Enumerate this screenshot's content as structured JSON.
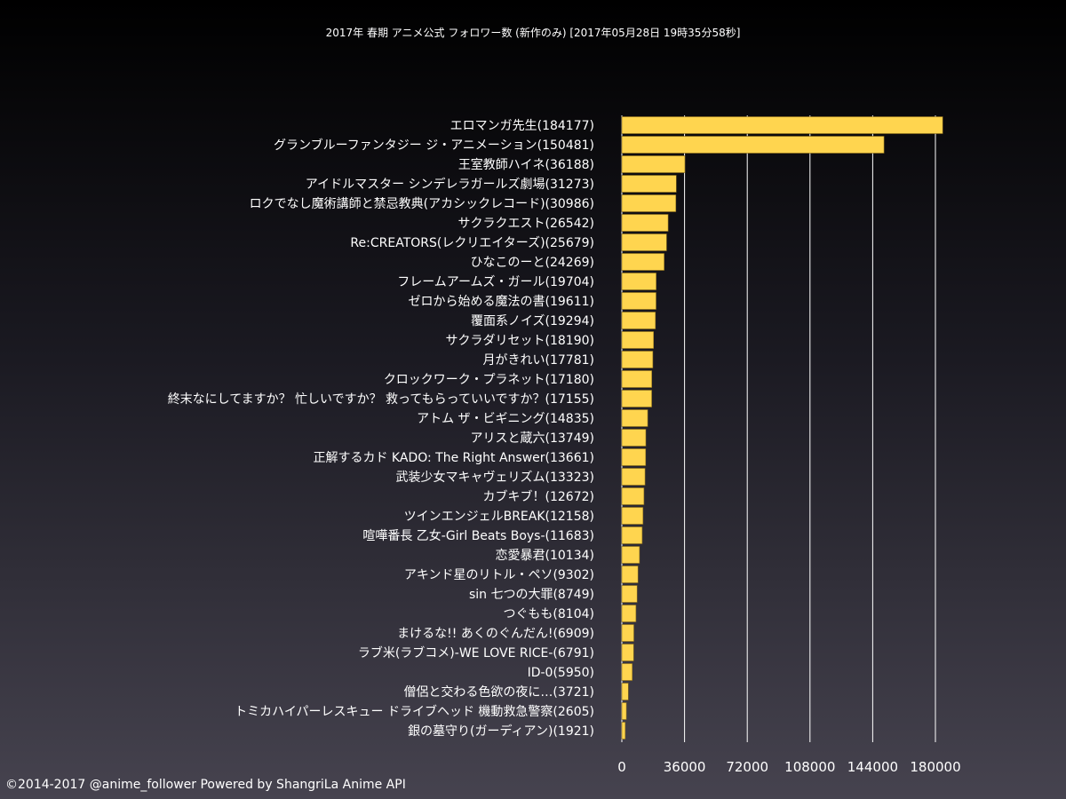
{
  "title": "2017年 春期 アニメ公式 フォロワー数 (新作のみ) [2017年05月28日 19時35分58秒]",
  "credit": "©2014-2017 @anime_follower Powered by ShangriLa Anime API",
  "colors": {
    "bar": "#ffd54f",
    "bar_stroke": "#8a6d1c",
    "grid": "#ffffff",
    "text": "#ffffff"
  },
  "chart_data": {
    "type": "bar",
    "orientation": "horizontal",
    "xlim": [
      0,
      180000
    ],
    "xticks": [
      0,
      36000,
      72000,
      108000,
      144000,
      180000
    ],
    "grid": true,
    "categories": [
      "エロマンガ先生(184177)",
      "グランブルーファンタジー ジ・アニメーション(150481)",
      "王室教師ハイネ(36188)",
      "アイドルマスター シンデレラガールズ劇場(31273)",
      "ロクでなし魔術講師と禁忌教典(アカシックレコード)(30986)",
      "サクラクエスト(26542)",
      "Re:CREATORS(レクリエイターズ)(25679)",
      "ひなこのーと(24269)",
      "フレームアームズ・ガール(19704)",
      "ゼロから始める魔法の書(19611)",
      "覆面系ノイズ(19294)",
      "サクラダリセット(18190)",
      "月がきれい(17781)",
      "クロックワーク・プラネット(17180)",
      "終末なにしてますか？ 忙しいですか？ 救ってもらっていいですか？(17155)",
      "アトム ザ・ビギニング(14835)",
      "アリスと蔵六(13749)",
      "正解するカド KADO: The Right Answer(13661)",
      "武装少女マキャヴェリズム(13323)",
      "カブキブ！(12672)",
      "ツインエンジェルBREAK(12158)",
      "喧嘩番長 乙女-Girl Beats Boys-(11683)",
      "恋愛暴君(10134)",
      "アキンド星のリトル・ペソ(9302)",
      "sin 七つの大罪(8749)",
      "つぐもも(8104)",
      "まけるな!! あくのぐんだん!(6909)",
      "ラブ米(ラブコメ)-WE LOVE RICE-(6791)",
      "ID-0(5950)",
      "僧侶と交わる色欲の夜に…(3721)",
      "トミカハイパーレスキュー ドライブヘッド 機動救急警察(2605)",
      "銀の墓守り(ガーディアン)(1921)"
    ],
    "values": [
      184177,
      150481,
      36188,
      31273,
      30986,
      26542,
      25679,
      24269,
      19704,
      19611,
      19294,
      18190,
      17781,
      17180,
      17155,
      14835,
      13749,
      13661,
      13323,
      12672,
      12158,
      11683,
      10134,
      9302,
      8749,
      8104,
      6909,
      6791,
      5950,
      3721,
      2605,
      1921
    ]
  }
}
